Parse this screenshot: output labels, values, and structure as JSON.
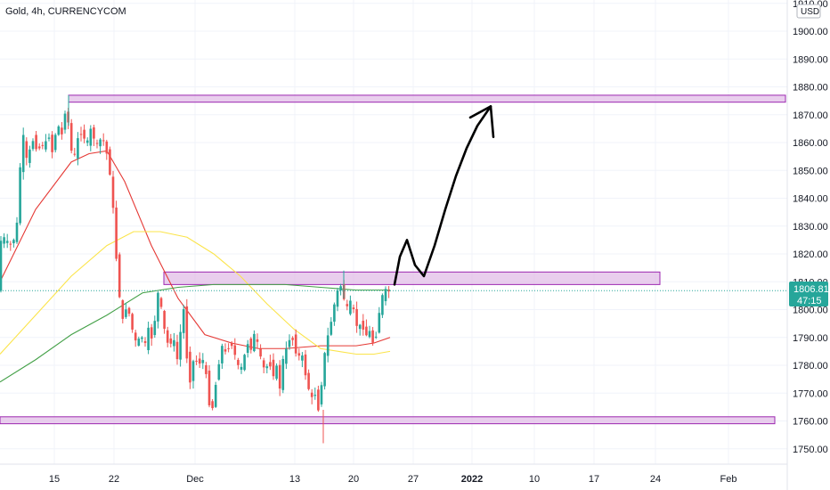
{
  "header": {
    "title": "Gold, 4h, CURRENCYCOM"
  },
  "price_axis": {
    "unit": "USD",
    "current_price": "1806.81",
    "countdown": "47:15"
  },
  "colors": {
    "up": "#26a69a",
    "down": "#ef5350",
    "zone_fill": "#e1bee7",
    "zone_stroke": "#9c27b0",
    "ma_fast": "#e53935",
    "ma_mid": "#fbe44a",
    "ma_slow": "#43a047",
    "price_line": "#26a69a",
    "arrow": "#000000"
  },
  "chart_data": {
    "type": "candlestick",
    "title": "Gold, 4h, CURRENCYCOM",
    "ylim": [
      1743,
      1911
    ],
    "y_ticks": [
      1750,
      1760,
      1770,
      1780,
      1790,
      1800,
      1810,
      1820,
      1830,
      1840,
      1850,
      1860,
      1870,
      1880,
      1890,
      1900,
      1910
    ],
    "x_ticks": [
      "15",
      "22",
      "Dec",
      "13",
      "20",
      "27",
      "2022",
      "10",
      "17",
      "24",
      "Feb"
    ],
    "current_price": 1806.81,
    "price_path": [
      [
        0,
        1824
      ],
      [
        4,
        1825
      ],
      [
        8,
        1826
      ],
      [
        12,
        1822
      ],
      [
        16,
        1825
      ],
      [
        20,
        1826
      ],
      [
        24,
        1850
      ],
      [
        28,
        1862
      ],
      [
        32,
        1853
      ],
      [
        36,
        1858
      ],
      [
        40,
        1862
      ],
      [
        44,
        1856
      ],
      [
        48,
        1860
      ],
      [
        52,
        1858
      ],
      [
        56,
        1864
      ],
      [
        60,
        1856
      ],
      [
        64,
        1863
      ],
      [
        68,
        1866
      ],
      [
        72,
        1862
      ],
      [
        76,
        1875
      ],
      [
        80,
        1862
      ],
      [
        84,
        1852
      ],
      [
        88,
        1860
      ],
      [
        92,
        1864
      ],
      [
        96,
        1862
      ],
      [
        100,
        1860
      ],
      [
        104,
        1865
      ],
      [
        108,
        1861
      ],
      [
        112,
        1858
      ],
      [
        116,
        1863
      ],
      [
        120,
        1858
      ],
      [
        124,
        1853
      ],
      [
        128,
        1840
      ],
      [
        132,
        1820
      ],
      [
        136,
        1805
      ],
      [
        140,
        1795
      ],
      [
        144,
        1802
      ],
      [
        148,
        1797
      ],
      [
        152,
        1790
      ],
      [
        156,
        1787
      ],
      [
        160,
        1792
      ],
      [
        164,
        1786
      ],
      [
        168,
        1793
      ],
      [
        172,
        1790
      ],
      [
        176,
        1797
      ],
      [
        180,
        1808
      ],
      [
        184,
        1797
      ],
      [
        188,
        1790
      ],
      [
        192,
        1786
      ],
      [
        196,
        1792
      ],
      [
        200,
        1780
      ],
      [
        204,
        1791
      ],
      [
        208,
        1800
      ],
      [
        212,
        1781
      ],
      [
        216,
        1773
      ],
      [
        220,
        1785
      ],
      [
        224,
        1779
      ],
      [
        228,
        1783
      ],
      [
        232,
        1780
      ],
      [
        236,
        1767
      ],
      [
        240,
        1764
      ],
      [
        244,
        1773
      ],
      [
        248,
        1782
      ],
      [
        252,
        1788
      ],
      [
        256,
        1783
      ],
      [
        260,
        1789
      ],
      [
        264,
        1786
      ],
      [
        268,
        1780
      ],
      [
        272,
        1778
      ],
      [
        276,
        1783
      ],
      [
        280,
        1788
      ],
      [
        284,
        1786
      ],
      [
        288,
        1792
      ],
      [
        292,
        1786
      ],
      [
        296,
        1780
      ],
      [
        300,
        1778
      ],
      [
        304,
        1782
      ],
      [
        308,
        1776
      ],
      [
        312,
        1780
      ],
      [
        316,
        1772
      ],
      [
        320,
        1783
      ],
      [
        324,
        1786
      ],
      [
        328,
        1791
      ],
      [
        332,
        1788
      ],
      [
        336,
        1782
      ],
      [
        340,
        1785
      ],
      [
        344,
        1778
      ],
      [
        348,
        1772
      ],
      [
        352,
        1768
      ],
      [
        356,
        1770
      ],
      [
        360,
        1763
      ],
      [
        364,
        1778
      ],
      [
        368,
        1788
      ],
      [
        372,
        1793
      ],
      [
        376,
        1800
      ],
      [
        380,
        1806
      ],
      [
        384,
        1809
      ],
      [
        388,
        1804
      ],
      [
        392,
        1800
      ],
      [
        396,
        1803
      ],
      [
        400,
        1798
      ],
      [
        404,
        1792
      ],
      [
        408,
        1796
      ],
      [
        412,
        1790
      ],
      [
        416,
        1793
      ],
      [
        420,
        1788
      ],
      [
        424,
        1791
      ],
      [
        428,
        1800
      ],
      [
        432,
        1806
      ],
      [
        436,
        1807
      ],
      [
        439,
        1806.8
      ]
    ],
    "moving_averages": [
      {
        "key": "ma_fast",
        "points": [
          [
            0,
            1810
          ],
          [
            40,
            1836
          ],
          [
            80,
            1853
          ],
          [
            100,
            1856
          ],
          [
            120,
            1857
          ],
          [
            140,
            1846
          ],
          [
            170,
            1823
          ],
          [
            200,
            1804
          ],
          [
            230,
            1791
          ],
          [
            260,
            1788
          ],
          [
            290,
            1786
          ],
          [
            320,
            1786
          ],
          [
            360,
            1787
          ],
          [
            400,
            1787
          ],
          [
            420,
            1788
          ],
          [
            438,
            1790
          ]
        ]
      },
      {
        "key": "ma_mid",
        "points": [
          [
            0,
            1784
          ],
          [
            40,
            1798
          ],
          [
            80,
            1812
          ],
          [
            120,
            1823
          ],
          [
            150,
            1828
          ],
          [
            180,
            1828
          ],
          [
            210,
            1826
          ],
          [
            240,
            1820
          ],
          [
            270,
            1812
          ],
          [
            300,
            1802
          ],
          [
            330,
            1793
          ],
          [
            360,
            1786
          ],
          [
            400,
            1784
          ],
          [
            420,
            1784
          ],
          [
            438,
            1785
          ]
        ]
      },
      {
        "key": "ma_slow",
        "points": [
          [
            0,
            1774
          ],
          [
            40,
            1782
          ],
          [
            80,
            1791
          ],
          [
            120,
            1798
          ],
          [
            160,
            1806
          ],
          [
            200,
            1808
          ],
          [
            240,
            1809
          ],
          [
            280,
            1809
          ],
          [
            320,
            1809
          ],
          [
            360,
            1808
          ],
          [
            400,
            1807
          ],
          [
            438,
            1807
          ]
        ]
      }
    ],
    "zones": [
      {
        "x0": 77,
        "x1": 882,
        "y_low": 1874.5,
        "y_high": 1877
      },
      {
        "x0": 184,
        "x1": 741,
        "y_low": 1809,
        "y_high": 1813.5
      },
      {
        "x0": 0,
        "x1": 870,
        "y_low": 1759,
        "y_high": 1761.5
      }
    ],
    "projection": [
      [
        443,
        1809
      ],
      [
        449,
        1819
      ],
      [
        457,
        1825
      ],
      [
        466,
        1816
      ],
      [
        476,
        1812
      ],
      [
        488,
        1823
      ],
      [
        500,
        1836
      ],
      [
        512,
        1848
      ],
      [
        524,
        1858
      ],
      [
        536,
        1866
      ],
      [
        551,
        1873
      ]
    ],
    "projection_arrow_head": [
      [
        528,
        1869
      ],
      [
        551,
        1873
      ],
      [
        554,
        1862
      ]
    ]
  }
}
